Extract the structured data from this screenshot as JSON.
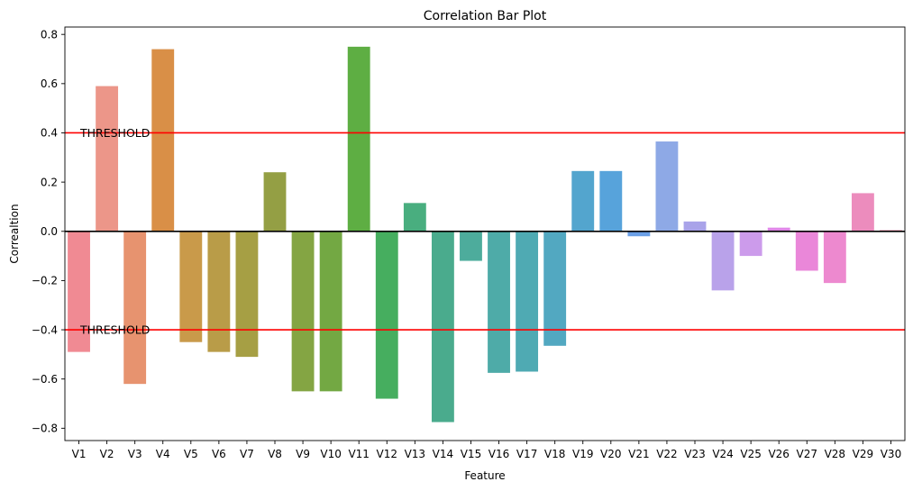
{
  "chart_data": {
    "type": "bar",
    "title": "Correlation Bar Plot",
    "xlabel": "Feature",
    "ylabel": "Correaltion",
    "ylim": [
      -0.85,
      0.83
    ],
    "yticks": [
      -0.8,
      -0.6,
      -0.4,
      -0.2,
      0.0,
      0.2,
      0.4,
      0.6,
      0.8
    ],
    "ytick_labels": [
      "−0.8",
      "−0.6",
      "−0.4",
      "−0.2",
      "0.0",
      "0.2",
      "0.4",
      "0.6",
      "0.8"
    ],
    "grid": false,
    "categories": [
      "V1",
      "V2",
      "V3",
      "V4",
      "V5",
      "V6",
      "V7",
      "V8",
      "V9",
      "V10",
      "V11",
      "V12",
      "V13",
      "V14",
      "V15",
      "V16",
      "V17",
      "V18",
      "V19",
      "V20",
      "V21",
      "V22",
      "V23",
      "V24",
      "V25",
      "V26",
      "V27",
      "V28",
      "V29",
      "V30"
    ],
    "values": [
      -0.49,
      0.59,
      -0.62,
      0.74,
      -0.45,
      -0.49,
      -0.51,
      0.24,
      -0.65,
      -0.65,
      0.75,
      -0.68,
      0.115,
      -0.775,
      -0.12,
      -0.575,
      -0.57,
      -0.465,
      0.245,
      0.245,
      -0.02,
      0.365,
      0.04,
      -0.24,
      -0.1,
      0.015,
      -0.16,
      -0.21,
      0.155,
      0.005
    ],
    "colors": [
      "#f08a93",
      "#ec9689",
      "#e7936f",
      "#d98f47",
      "#c99a4a",
      "#b99c48",
      "#a69f44",
      "#949f44",
      "#84a543",
      "#73a843",
      "#5eae43",
      "#46ae5f",
      "#49ae7f",
      "#4aab8d",
      "#4dac9c",
      "#4eaba8",
      "#4faab3",
      "#52a8c1",
      "#53a5ce",
      "#57a3db",
      "#6a9fe6",
      "#8ea9e6",
      "#a9a3e9",
      "#b9a2ea",
      "#cc9beb",
      "#e088e8",
      "#ea87d9",
      "#ed89cf",
      "#ec8cbd",
      "#ee8ea7"
    ],
    "reference_lines": [
      {
        "y": 0.4,
        "label": "THRESHOLD",
        "color": "#ff0000"
      },
      {
        "y": -0.4,
        "label": "THRESHOLD",
        "color": "#ff0000"
      },
      {
        "y": 0.0,
        "label": "",
        "color": "#000000"
      }
    ]
  }
}
